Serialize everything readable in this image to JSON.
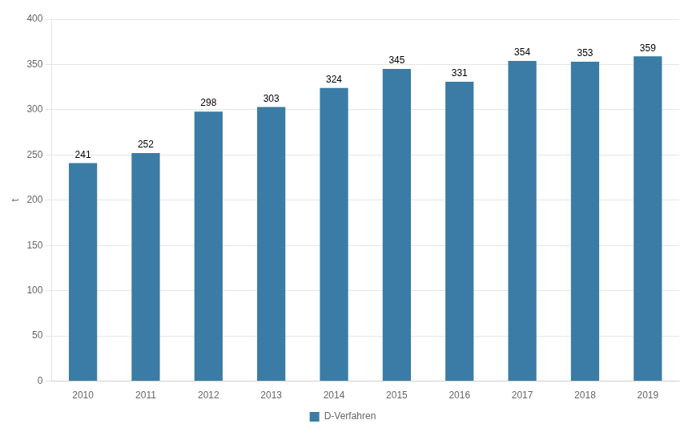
{
  "chart_data": {
    "type": "bar",
    "categories": [
      "2010",
      "2011",
      "2012",
      "2013",
      "2014",
      "2015",
      "2016",
      "2017",
      "2018",
      "2019"
    ],
    "series": [
      {
        "name": "D-Verfahren",
        "color": "#3A7CA5",
        "values": [
          241,
          252,
          298,
          303,
          324,
          345,
          331,
          354,
          353,
          359
        ]
      }
    ],
    "ylabel": "t",
    "ylim": [
      0,
      400
    ],
    "yticks": [
      0,
      50,
      100,
      150,
      200,
      250,
      300,
      350,
      400
    ],
    "grid": true,
    "legend": "bottom",
    "data_labels": true
  }
}
